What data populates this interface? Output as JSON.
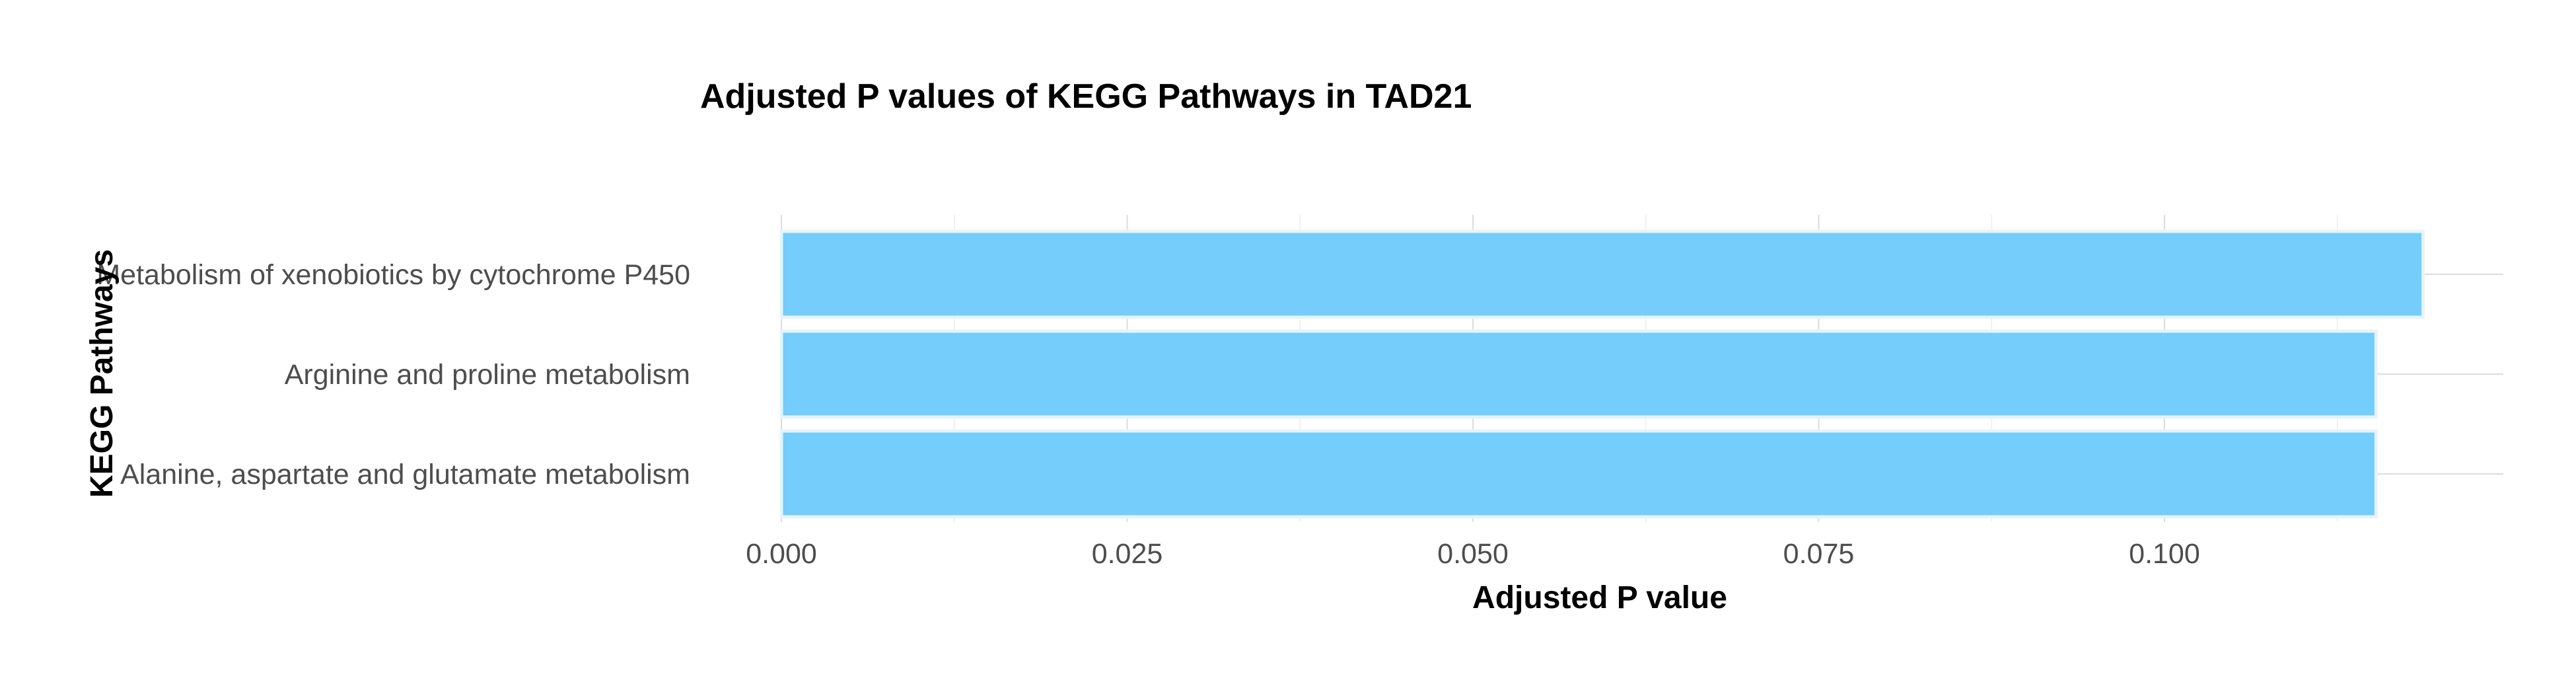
{
  "chart_data": {
    "type": "bar",
    "orientation": "horizontal",
    "title": "Adjusted P values of KEGG Pathways in TAD21",
    "xlabel": "Adjusted P value",
    "ylabel": "KEGG Pathways",
    "categories": [
      "Metabolism of xenobiotics by cytochrome P450",
      "Arginine and proline metabolism",
      "Alanine, aspartate and glutamate metabolism"
    ],
    "values": [
      0.1187,
      0.1153,
      0.1153
    ],
    "xticks": [
      "0.000",
      "0.025",
      "0.050",
      "0.075",
      "0.100"
    ],
    "xtick_values": [
      0.0,
      0.025,
      0.05,
      0.075,
      0.1
    ],
    "xlim": [
      0.0,
      0.1245
    ],
    "grid": true,
    "bar_color": "#74cdfb",
    "bar_outline_color": "#e6f4fb"
  }
}
